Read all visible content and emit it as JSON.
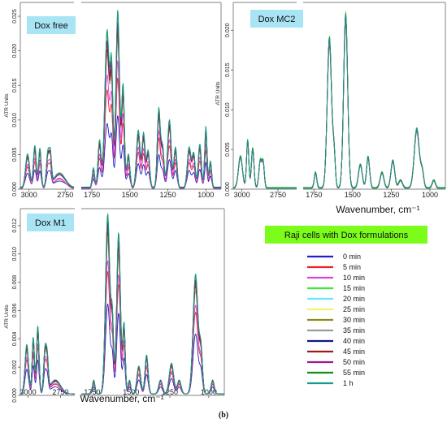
{
  "figure_label": "(b)",
  "colors": {
    "panel_title_bg": "#a8e4f4",
    "legend_title_bg": "#7cfc1a"
  },
  "legend": {
    "title": "Raji cells with Dox formulations",
    "entries": [
      {
        "label": "0 min",
        "color": "#1f1fd0"
      },
      {
        "label": "5 min",
        "color": "#e8242c"
      },
      {
        "label": "10 min",
        "color": "#e040e0"
      },
      {
        "label": "15 min",
        "color": "#3ae83a"
      },
      {
        "label": "20 min",
        "color": "#66e8f8"
      },
      {
        "label": "25 min",
        "color": "#f6f26a"
      },
      {
        "label": "30 min",
        "color": "#8c8c1a"
      },
      {
        "label": "35 min",
        "color": "#9a9a9a"
      },
      {
        "label": "40 min",
        "color": "#14148c"
      },
      {
        "label": "45 min",
        "color": "#a01818"
      },
      {
        "label": "50 min",
        "color": "#9a1a9a"
      },
      {
        "label": "55 min",
        "color": "#168c16"
      },
      {
        "label": "1 h",
        "color": "#1a9a8c"
      }
    ]
  },
  "chart_data": [
    {
      "type": "line",
      "title": "Dox free",
      "ylabel": "ATR Units",
      "xlabel": "",
      "ylim": [
        0,
        0.027
      ],
      "yticks": [
        0.0,
        0.005,
        0.01,
        0.015,
        0.02,
        0.025
      ],
      "ytick_labels": [
        "0.000",
        "0.005",
        "0.010",
        "0.015",
        "0.020",
        "0.025"
      ],
      "x_segments": [
        {
          "range": [
            3060,
            2690
          ],
          "ticks": [
            3000,
            2750
          ],
          "tick_labels": [
            "3000",
            "2750"
          ]
        },
        {
          "range": [
            1820,
            900
          ],
          "ticks": [
            1750,
            1500,
            1250,
            1000
          ],
          "tick_labels": [
            "1750",
            "1500",
            "1250",
            "1000"
          ]
        }
      ],
      "peaks": [
        [
          3010,
          0.005,
          14
        ],
        [
          2960,
          0.0062,
          10
        ],
        [
          2925,
          0.0058,
          9
        ],
        [
          2870,
          0.005,
          10
        ],
        [
          2852,
          0.004,
          8
        ],
        [
          2790,
          0.0022,
          40
        ],
        [
          1740,
          0.003,
          8
        ],
        [
          1700,
          0.007,
          10
        ],
        [
          1650,
          0.023,
          15
        ],
        [
          1620,
          0.016,
          9
        ],
        [
          1580,
          0.026,
          12
        ],
        [
          1545,
          0.015,
          9
        ],
        [
          1510,
          0.005,
          10
        ],
        [
          1445,
          0.0085,
          12
        ],
        [
          1410,
          0.008,
          10
        ],
        [
          1380,
          0.0055,
          10
        ],
        [
          1310,
          0.0115,
          10
        ],
        [
          1285,
          0.006,
          10
        ],
        [
          1240,
          0.01,
          12
        ],
        [
          1200,
          0.006,
          10
        ],
        [
          1110,
          0.006,
          12
        ],
        [
          1080,
          0.005,
          10
        ],
        [
          1040,
          0.0065,
          10
        ],
        [
          1000,
          0.009,
          8
        ],
        [
          970,
          0.004,
          8
        ]
      ],
      "series": [
        {
          "name": "0 min",
          "scale": 0.4,
          "baseline": 0.0003
        },
        {
          "name": "5 min",
          "scale": 0.62,
          "baseline": 0.0001
        },
        {
          "name": "10 min",
          "scale": 0.72,
          "baseline": 0.0
        },
        {
          "name": "15 min",
          "scale": 0.96,
          "baseline": 0.0002
        },
        {
          "name": "20 min",
          "scale": 0.88,
          "baseline": 0.0001
        },
        {
          "name": "25 min",
          "scale": 0.86,
          "baseline": 0.0002
        },
        {
          "name": "30 min",
          "scale": 0.9,
          "baseline": 0.0001
        },
        {
          "name": "35 min",
          "scale": 0.84,
          "baseline": 0.0002
        },
        {
          "name": "40 min",
          "scale": 0.92,
          "baseline": 0.0001
        },
        {
          "name": "45 min",
          "scale": 0.87,
          "baseline": 0.0002
        },
        {
          "name": "50 min",
          "scale": 0.93,
          "baseline": 0.0001
        },
        {
          "name": "55 min",
          "scale": 0.98,
          "baseline": 0.0002
        },
        {
          "name": "1 h",
          "scale": 1.0,
          "baseline": 0.0001
        }
      ]
    },
    {
      "type": "line",
      "title": "Dox MC2",
      "ylabel": "ATR Units",
      "xlabel": "Wavenumber, cm⁻¹",
      "ylim": [
        0,
        0.0235
      ],
      "yticks": [
        0.0,
        0.005,
        0.01,
        0.015,
        0.02
      ],
      "ytick_labels": [
        "0.000",
        "0.005",
        "0.010",
        "0.015",
        "0.020"
      ],
      "x_segments": [
        {
          "range": [
            3060,
            2620
          ],
          "ticks": [
            3000,
            2750
          ],
          "tick_labels": [
            "3000",
            "2750"
          ]
        },
        {
          "range": [
            1820,
            900
          ],
          "ticks": [
            1750,
            1500,
            1250,
            1000
          ],
          "tick_labels": [
            "1750",
            "1500",
            "1250",
            "1000"
          ]
        }
      ],
      "peaks": [
        [
          3010,
          0.004,
          14
        ],
        [
          2960,
          0.006,
          8
        ],
        [
          2925,
          0.005,
          9
        ],
        [
          2872,
          0.0035,
          10
        ],
        [
          2852,
          0.003,
          8
        ],
        [
          1740,
          0.002,
          8
        ],
        [
          1650,
          0.019,
          14
        ],
        [
          1620,
          0.004,
          8
        ],
        [
          1545,
          0.022,
          13
        ],
        [
          1450,
          0.003,
          12
        ],
        [
          1400,
          0.004,
          10
        ],
        [
          1310,
          0.002,
          12
        ],
        [
          1240,
          0.0035,
          12
        ],
        [
          1190,
          0.001,
          12
        ],
        [
          1085,
          0.0075,
          16
        ],
        [
          1050,
          0.002,
          10
        ],
        [
          975,
          0.001,
          10
        ]
      ],
      "series": [
        {
          "name": "0 min",
          "scale": 0.95,
          "baseline": 0.0001
        },
        {
          "name": "5 min",
          "scale": 0.96,
          "baseline": 0.0002
        },
        {
          "name": "10 min",
          "scale": 0.97,
          "baseline": 0.0001
        },
        {
          "name": "15 min",
          "scale": 1.01,
          "baseline": 0.0002
        },
        {
          "name": "20 min",
          "scale": 0.99,
          "baseline": 0.0001
        },
        {
          "name": "25 min",
          "scale": 0.98,
          "baseline": 0.0002
        },
        {
          "name": "30 min",
          "scale": 0.97,
          "baseline": 0.0001
        },
        {
          "name": "35 min",
          "scale": 0.96,
          "baseline": 0.0002
        },
        {
          "name": "40 min",
          "scale": 1.0,
          "baseline": 0.0001
        },
        {
          "name": "45 min",
          "scale": 0.98,
          "baseline": 0.0002
        },
        {
          "name": "50 min",
          "scale": 0.99,
          "baseline": 0.0001
        },
        {
          "name": "55 min",
          "scale": 1.0,
          "baseline": 0.0002
        },
        {
          "name": "1 h",
          "scale": 1.0,
          "baseline": 0.0001
        }
      ]
    },
    {
      "type": "line",
      "title": "Dox M1",
      "ylabel": "ATR Units",
      "xlabel": "Wavenumber, cm⁻¹",
      "ylim": [
        0,
        0.0132
      ],
      "yticks": [
        0.0,
        0.002,
        0.004,
        0.006,
        0.008,
        0.01,
        0.012
      ],
      "ytick_labels": [
        "0.000",
        "0.002",
        "0.004",
        "0.006",
        "0.008",
        "0.010",
        "0.012"
      ],
      "x_segments": [
        {
          "range": [
            3060,
            2640
          ],
          "ticks": [
            3000,
            2750
          ],
          "tick_labels": [
            "3000",
            "2750"
          ]
        },
        {
          "range": [
            1820,
            900
          ],
          "ticks": [
            1750,
            1500,
            1250,
            1000
          ],
          "tick_labels": [
            "1750",
            "1500",
            "1250",
            "1000"
          ]
        }
      ],
      "peaks": [
        [
          3010,
          0.0035,
          14
        ],
        [
          2960,
          0.004,
          9
        ],
        [
          2925,
          0.0048,
          10
        ],
        [
          2870,
          0.003,
          10
        ],
        [
          2852,
          0.0022,
          9
        ],
        [
          2790,
          0.001,
          40
        ],
        [
          1740,
          0.001,
          8
        ],
        [
          1650,
          0.0128,
          14
        ],
        [
          1620,
          0.005,
          8
        ],
        [
          1580,
          0.0115,
          12
        ],
        [
          1545,
          0.005,
          8
        ],
        [
          1510,
          0.001,
          8
        ],
        [
          1450,
          0.002,
          12
        ],
        [
          1400,
          0.0028,
          10
        ],
        [
          1310,
          0.001,
          12
        ],
        [
          1240,
          0.0022,
          14
        ],
        [
          1190,
          0.001,
          12
        ],
        [
          1085,
          0.0085,
          16
        ],
        [
          1050,
          0.003,
          10
        ],
        [
          975,
          0.001,
          10
        ]
      ],
      "series": [
        {
          "name": "0 min",
          "scale": 0.5,
          "baseline": 0.0001
        },
        {
          "name": "5 min",
          "scale": 0.68,
          "baseline": 0.0001
        },
        {
          "name": "10 min",
          "scale": 0.74,
          "baseline": 0.0001
        },
        {
          "name": "15 min",
          "scale": 0.98,
          "baseline": 0.0001
        },
        {
          "name": "20 min",
          "scale": 0.9,
          "baseline": 0.0001
        },
        {
          "name": "25 min",
          "scale": 0.88,
          "baseline": 0.0001
        },
        {
          "name": "30 min",
          "scale": 0.92,
          "baseline": 0.0001
        },
        {
          "name": "35 min",
          "scale": 0.86,
          "baseline": 0.0001
        },
        {
          "name": "40 min",
          "scale": 0.94,
          "baseline": 0.0001
        },
        {
          "name": "45 min",
          "scale": 0.9,
          "baseline": 0.0001
        },
        {
          "name": "50 min",
          "scale": 0.95,
          "baseline": 0.0001
        },
        {
          "name": "55 min",
          "scale": 0.99,
          "baseline": 0.0001
        },
        {
          "name": "1 h",
          "scale": 1.0,
          "baseline": 0.0001
        }
      ]
    }
  ]
}
